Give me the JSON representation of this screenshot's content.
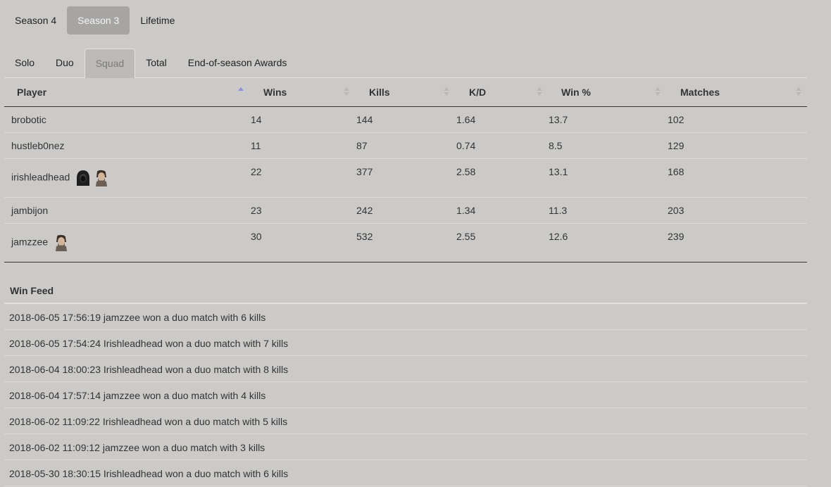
{
  "season_tabs": [
    "Season 4",
    "Season 3",
    "Lifetime"
  ],
  "active_season": "Season 3",
  "mode_tabs": [
    "Solo",
    "Duo",
    "Squad",
    "Total",
    "End-of-season Awards"
  ],
  "active_mode": "Squad",
  "table": {
    "headers": [
      "Player",
      "Wins",
      "Kills",
      "K/D",
      "Win %",
      "Matches"
    ],
    "sorted_by": "Player",
    "sort_direction": "ascending",
    "rows": [
      {
        "player": "brobotic",
        "wins": "14",
        "kills": "144",
        "kd": "1.64",
        "win_pct": "13.7",
        "matches": "102",
        "avatars": []
      },
      {
        "player": "hustleb0nez",
        "wins": "11",
        "kills": "87",
        "kd": "0.74",
        "win_pct": "8.5",
        "matches": "129",
        "avatars": []
      },
      {
        "player": "irishleadhead",
        "wins": "22",
        "kills": "377",
        "kd": "2.58",
        "win_pct": "13.1",
        "matches": "168",
        "avatars": [
          "dark-hooded-avatar-icon",
          "bearded-character-avatar-icon"
        ]
      },
      {
        "player": "jambijon",
        "wins": "23",
        "kills": "242",
        "kd": "1.34",
        "win_pct": "11.3",
        "matches": "203",
        "avatars": []
      },
      {
        "player": "jamzzee",
        "wins": "30",
        "kills": "532",
        "kd": "2.55",
        "win_pct": "12.6",
        "matches": "239",
        "avatars": [
          "bearded-character-avatar-icon"
        ]
      }
    ]
  },
  "win_feed": {
    "title": "Win Feed",
    "items": [
      "2018-06-05 17:56:19 jamzzee won a duo match with 6 kills",
      "2018-06-05 17:54:24 Irishleadhead won a duo match with 7 kills",
      "2018-06-04 18:00:23 Irishleadhead won a duo match with 8 kills",
      "2018-06-04 17:57:14 jamzzee won a duo match with 4 kills",
      "2018-06-02 11:09:22 Irishleadhead won a duo match with 5 kills",
      "2018-06-02 11:09:12 jamzzee won a duo match with 3 kills",
      "2018-05-30 18:30:15 Irishleadhead won a duo match with 6 kills"
    ]
  },
  "colors": {
    "background": "#cbcac8",
    "active_tab": "#a6a5a3",
    "sort_active": "#8b8fe0"
  }
}
